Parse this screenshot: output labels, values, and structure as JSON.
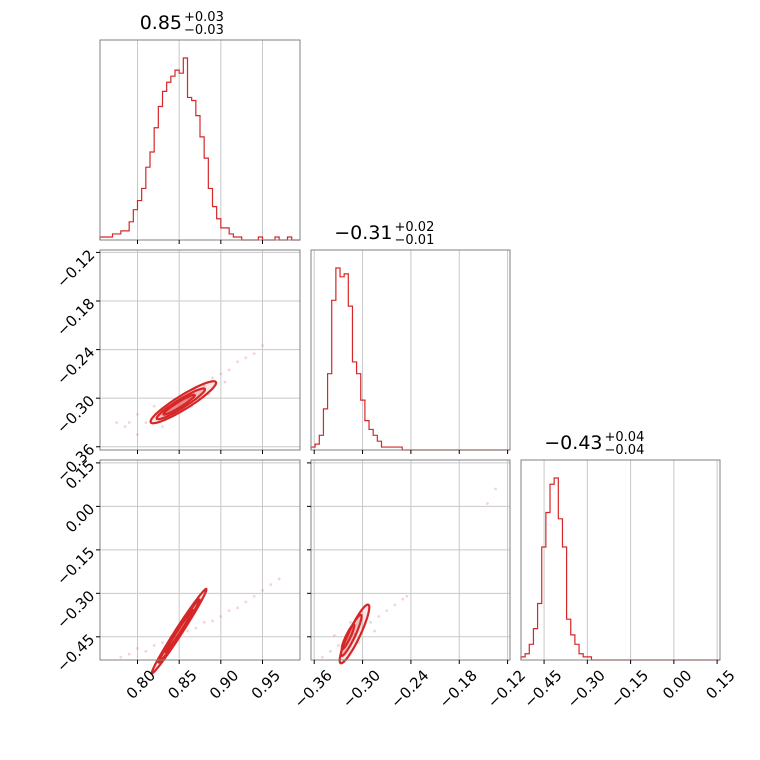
{
  "chart_data": {
    "type": "corner",
    "color": "#d62728",
    "parameters": [
      {
        "median": 0.85,
        "upper": 0.03,
        "lower": 0.03,
        "title_main": "0.85",
        "title_sup": "+0.03",
        "title_sub": "−0.03",
        "range": [
          0.755,
          0.995
        ]
      },
      {
        "median": -0.31,
        "upper": 0.02,
        "lower": 0.01,
        "title_main": "−0.31",
        "title_sup": "+0.02",
        "title_sub": "−0.01",
        "range": [
          -0.364,
          -0.117
        ]
      },
      {
        "median": -0.43,
        "upper": 0.04,
        "lower": 0.04,
        "title_main": "−0.43",
        "title_sup": "+0.04",
        "title_sub": "−0.04",
        "range": [
          -0.53,
          0.16
        ]
      }
    ],
    "ticks": {
      "p0": {
        "values": [
          0.8,
          0.85,
          0.9,
          0.95
        ],
        "labels": [
          "0.80",
          "0.85",
          "0.90",
          "0.95"
        ]
      },
      "p1": {
        "values": [
          -0.36,
          -0.3,
          -0.24,
          -0.18,
          -0.12
        ],
        "labels": [
          "−0.36",
          "−0.30",
          "−0.24",
          "−0.18",
          "−0.12"
        ]
      },
      "p2": {
        "values": [
          -0.45,
          -0.3,
          -0.15,
          0.0,
          0.15
        ],
        "labels": [
          "−0.45",
          "−0.30",
          "−0.15",
          "0.00",
          "0.15"
        ]
      }
    },
    "histograms": [
      {
        "edges_start": 0.755,
        "edges_end": 0.995,
        "counts": [
          1,
          1,
          1,
          2,
          2,
          3,
          3,
          6,
          10,
          13,
          17,
          24,
          29,
          37,
          44,
          49,
          52,
          54,
          56,
          55,
          60,
          47,
          46,
          41,
          34,
          27,
          17,
          11,
          7,
          4,
          4,
          2,
          1,
          1,
          0,
          0,
          0,
          0,
          1,
          0,
          0,
          0,
          1,
          0,
          0,
          1,
          0,
          0
        ]
      },
      {
        "edges_start": -0.364,
        "edges_end": -0.117,
        "counts": [
          1,
          2,
          5,
          14,
          26,
          51,
          62,
          59,
          60,
          49,
          30,
          26,
          17,
          10,
          7,
          5,
          3,
          1,
          1,
          1,
          1,
          1,
          0,
          0,
          0,
          0,
          0,
          0,
          0,
          0,
          0,
          0,
          0,
          0,
          0,
          0,
          0,
          0,
          0,
          0,
          0,
          0,
          0,
          0,
          0,
          0,
          0,
          0
        ]
      },
      {
        "edges_start": -0.53,
        "edges_end": 0.16,
        "counts": [
          1,
          2,
          5,
          10,
          18,
          36,
          47,
          56,
          58,
          45,
          36,
          13,
          8,
          5,
          2,
          1,
          1,
          0,
          0,
          0,
          0,
          0,
          0,
          0,
          0,
          0,
          0,
          0,
          0,
          0,
          0,
          0,
          0,
          0,
          0,
          0,
          0,
          0,
          0,
          0,
          0,
          0,
          0,
          0,
          0,
          0,
          0,
          0
        ]
      }
    ],
    "scatter": [
      {
        "x_param": 0,
        "y_param": 1,
        "points": [
          [
            0.79,
            -0.33
          ],
          [
            0.8,
            -0.32
          ],
          [
            0.785,
            -0.335
          ],
          [
            0.81,
            -0.33
          ],
          [
            0.82,
            -0.31
          ],
          [
            0.83,
            -0.32
          ],
          [
            0.84,
            -0.305
          ],
          [
            0.86,
            -0.3
          ],
          [
            0.87,
            -0.29
          ],
          [
            0.88,
            -0.285
          ],
          [
            0.89,
            -0.275
          ],
          [
            0.9,
            -0.27
          ],
          [
            0.91,
            -0.265
          ],
          [
            0.92,
            -0.255
          ],
          [
            0.93,
            -0.25
          ],
          [
            0.94,
            -0.245
          ],
          [
            0.95,
            -0.235
          ],
          [
            0.8,
            -0.345
          ],
          [
            0.775,
            -0.33
          ],
          [
            0.865,
            -0.31
          ],
          [
            0.845,
            -0.32
          ],
          [
            0.83,
            -0.335
          ],
          [
            0.885,
            -0.295
          ],
          [
            0.905,
            -0.28
          ]
        ]
      },
      {
        "x_param": 0,
        "y_param": 2,
        "points": [
          [
            0.78,
            -0.52
          ],
          [
            0.79,
            -0.51
          ],
          [
            0.8,
            -0.49
          ],
          [
            0.82,
            -0.48
          ],
          [
            0.84,
            -0.45
          ],
          [
            0.86,
            -0.43
          ],
          [
            0.88,
            -0.4
          ],
          [
            0.9,
            -0.38
          ],
          [
            0.91,
            -0.36
          ],
          [
            0.92,
            -0.35
          ],
          [
            0.93,
            -0.33
          ],
          [
            0.94,
            -0.31
          ],
          [
            0.95,
            -0.29
          ],
          [
            0.96,
            -0.27
          ],
          [
            0.97,
            -0.25
          ],
          [
            0.81,
            -0.5
          ],
          [
            0.83,
            -0.47
          ],
          [
            0.87,
            -0.42
          ],
          [
            0.89,
            -0.395
          ]
        ]
      },
      {
        "x_param": 1,
        "y_param": 2,
        "points": [
          [
            -0.35,
            -0.52
          ],
          [
            -0.34,
            -0.5
          ],
          [
            -0.33,
            -0.48
          ],
          [
            -0.32,
            -0.46
          ],
          [
            -0.31,
            -0.44
          ],
          [
            -0.3,
            -0.42
          ],
          [
            -0.29,
            -0.4
          ],
          [
            -0.28,
            -0.38
          ],
          [
            -0.27,
            -0.36
          ],
          [
            -0.26,
            -0.34
          ],
          [
            -0.25,
            -0.32
          ],
          [
            -0.245,
            -0.31
          ],
          [
            -0.335,
            -0.445
          ],
          [
            -0.305,
            -0.47
          ],
          [
            -0.315,
            -0.4
          ],
          [
            -0.285,
            -0.43
          ],
          [
            -0.145,
            0.01
          ],
          [
            -0.135,
            0.06
          ]
        ]
      }
    ],
    "contours": [
      {
        "x_param": 0,
        "y_param": 1,
        "levels": [
          {
            "cx": 0.855,
            "cy": -0.305,
            "a": 0.046,
            "b": 0.0085,
            "angle_slope": 0.62
          },
          {
            "cx": 0.852,
            "cy": -0.307,
            "a": 0.034,
            "b": 0.0055,
            "angle_slope": 0.62
          },
          {
            "cx": 0.85,
            "cy": -0.308,
            "a": 0.022,
            "b": 0.0032,
            "angle_slope": 0.62
          }
        ]
      },
      {
        "x_param": 0,
        "y_param": 2,
        "levels": [
          {
            "cx": 0.85,
            "cy": -0.43,
            "a": 0.06,
            "b": 0.012,
            "angle_slope": 1.55
          },
          {
            "cx": 0.85,
            "cy": -0.43,
            "a": 0.045,
            "b": 0.008,
            "angle_slope": 1.55
          },
          {
            "cx": 0.85,
            "cy": -0.43,
            "a": 0.03,
            "b": 0.005,
            "angle_slope": 1.55
          }
        ]
      },
      {
        "x_param": 1,
        "y_param": 2,
        "levels": [
          {
            "cx": -0.31,
            "cy": -0.44,
            "a": 0.04,
            "b": 0.02,
            "angle_slope": 2.1
          },
          {
            "cx": -0.314,
            "cy": -0.445,
            "a": 0.028,
            "b": 0.013,
            "angle_slope": 2.1
          },
          {
            "cx": -0.318,
            "cy": -0.45,
            "a": 0.017,
            "b": 0.008,
            "angle_slope": 2.1
          }
        ]
      }
    ],
    "grid": true
  }
}
